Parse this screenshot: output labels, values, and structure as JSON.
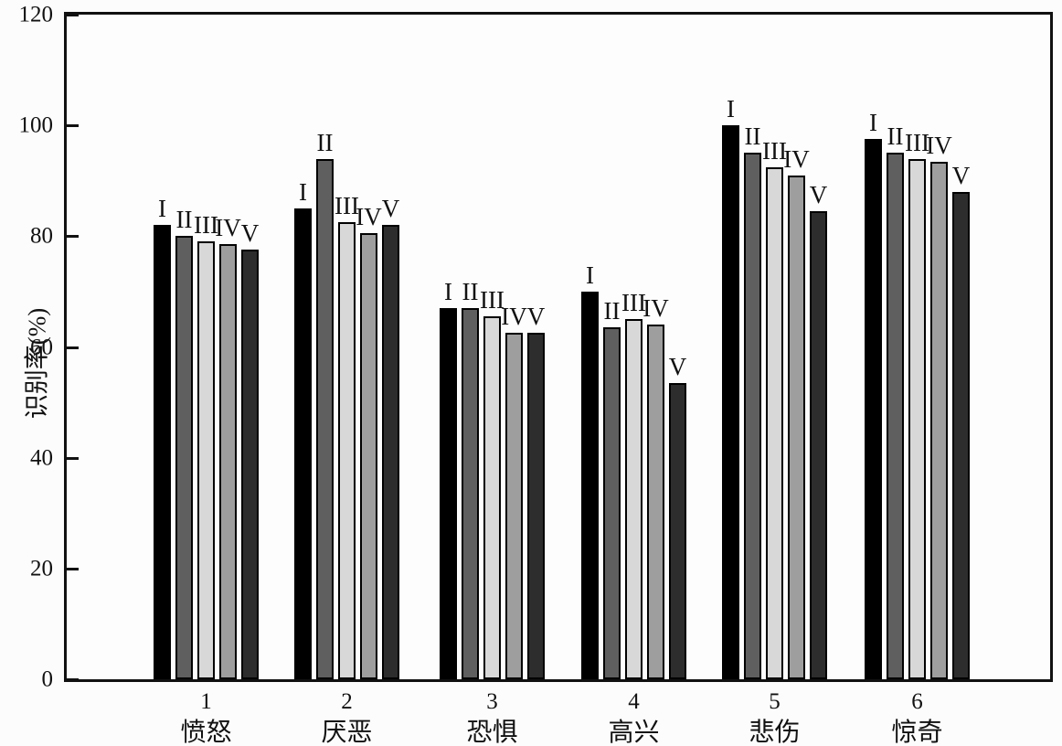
{
  "chart_data": {
    "type": "bar",
    "title": "",
    "xlabel": "",
    "ylabel": "识别率(%)",
    "ylim": [
      0,
      120
    ],
    "yticks": [
      0,
      20,
      40,
      60,
      80,
      100,
      120
    ],
    "grid": false,
    "legend_position": "none",
    "bar_labels": "series name above each bar",
    "axis_color": "#111111",
    "categories": [
      {
        "number": "1",
        "label": "愤怒"
      },
      {
        "number": "2",
        "label": "厌恶"
      },
      {
        "number": "3",
        "label": "恐惧"
      },
      {
        "number": "4",
        "label": "高兴"
      },
      {
        "number": "5",
        "label": "悲伤"
      },
      {
        "number": "6",
        "label": "惊奇"
      }
    ],
    "series": [
      {
        "name": "I",
        "color": "#000000",
        "values": [
          82,
          85,
          67,
          70,
          100,
          97.5
        ]
      },
      {
        "name": "II",
        "color": "#5f5f5f",
        "values": [
          80,
          94,
          67,
          63.5,
          95,
          95
        ]
      },
      {
        "name": "III",
        "color": "#d8d8d8",
        "values": [
          79,
          82.5,
          65.5,
          65,
          92.5,
          94
        ]
      },
      {
        "name": "IV",
        "color": "#9e9e9e",
        "values": [
          78.5,
          80.5,
          62.5,
          64,
          91,
          93.5
        ]
      },
      {
        "name": "V",
        "color": "#2d2d2d",
        "values": [
          77.5,
          82,
          62.5,
          53.5,
          84.5,
          88
        ]
      }
    ]
  }
}
